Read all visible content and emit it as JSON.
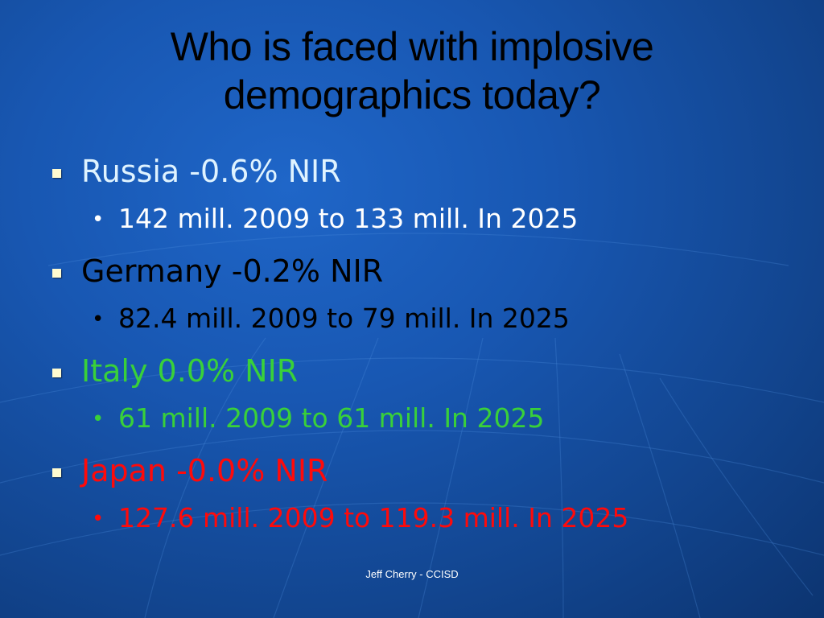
{
  "title": {
    "line1": "Who is faced with implosive",
    "line2": "demographics today?"
  },
  "bullets": [
    {
      "text": "Russia -0.6% NIR",
      "sub": "142 mill. 2009 to 133 mill. In 2025",
      "color": "#dff3ff",
      "sub_color": "#ffffff"
    },
    {
      "text": "Germany -0.2% NIR",
      "sub": "82.4 mill. 2009 to 79 mill. In 2025",
      "color": "#000000",
      "sub_color": "#000000"
    },
    {
      "text": "Italy 0.0% NIR",
      "sub": "61 mill. 2009 to 61 mill. In 2025",
      "color": "#39d03a",
      "sub_color": "#39d03a"
    },
    {
      "text": "Japan -0.0% NIR",
      "sub": "127.6 mill. 2009 to 119.3 mill. In 2025",
      "color": "#ff0a0a",
      "sub_color": "#ff0a0a"
    }
  ],
  "footer": "Jeff Cherry - CCISD",
  "colors": {
    "background": "#1857b2",
    "bullet_square": "#fffbd0",
    "title": "#000000"
  },
  "icons": {
    "level1_bullet": "square-bullet-icon",
    "level2_bullet": "dot-bullet-icon"
  }
}
